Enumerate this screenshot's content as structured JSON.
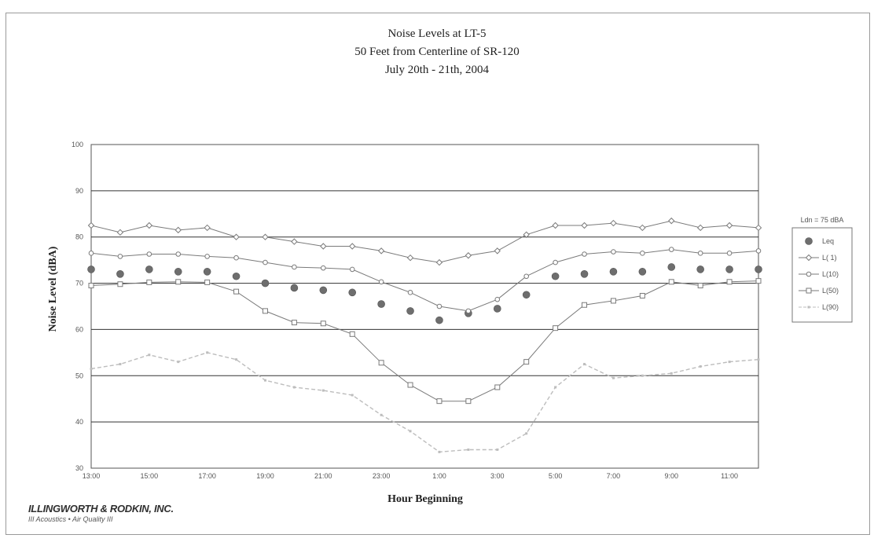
{
  "chart_data": {
    "type": "line",
    "title": [
      "Noise Levels at LT-5",
      "50 Feet from Centerline of SR-120",
      "July 20th - 21th, 2004"
    ],
    "xlabel": "Hour Beginning",
    "ylabel": "Noise Level (dBA)",
    "ylim": [
      30,
      100
    ],
    "yticks": [
      "30",
      "40",
      "50",
      "60",
      "70",
      "80",
      "90",
      "100"
    ],
    "x_tick_labels": [
      "13:00",
      "15:00",
      "17:00",
      "19:00",
      "21:00",
      "23:00",
      "1:00",
      "3:00",
      "5:00",
      "7:00",
      "9:00",
      "11:00"
    ],
    "grid": "horizontal",
    "legend_position": "right",
    "ldn_label": "Ldn = 75 dBA",
    "series": [
      {
        "name": "Leq",
        "style": "marker",
        "values": [
          73,
          72,
          73,
          72.5,
          72.5,
          71.5,
          70,
          69,
          68.5,
          68,
          65.5,
          64,
          62,
          63.5,
          64.5,
          67.5,
          71.5,
          72,
          72.5,
          72.5,
          73.5,
          73,
          73,
          73
        ]
      },
      {
        "name": "L( 1)",
        "style": "diamond",
        "values": [
          82.5,
          81,
          82.5,
          81.5,
          82,
          80,
          80,
          79,
          78,
          78,
          77,
          75.5,
          74.5,
          76,
          77,
          80.5,
          82.5,
          82.5,
          83,
          82,
          83.5,
          82,
          82.5,
          82
        ]
      },
      {
        "name": "L(10)",
        "style": "circle",
        "values": [
          76.5,
          75.8,
          76.3,
          76.3,
          75.8,
          75.5,
          74.5,
          73.5,
          73.3,
          73,
          70.3,
          68,
          65,
          64,
          66.5,
          71.5,
          74.5,
          76.3,
          76.8,
          76.5,
          77.3,
          76.5,
          76.5,
          77
        ]
      },
      {
        "name": "L(50)",
        "style": "square",
        "values": [
          69.5,
          69.8,
          70.2,
          70.3,
          70.2,
          68.2,
          64,
          61.5,
          61.3,
          59,
          52.8,
          48,
          44.5,
          44.5,
          47.5,
          53,
          60.3,
          65.3,
          66.2,
          67.3,
          70.3,
          69.5,
          70.3,
          70.5
        ]
      },
      {
        "name": "L(90)",
        "style": "dashed",
        "values": [
          51.5,
          52.5,
          54.5,
          53,
          55,
          53.5,
          49,
          47.5,
          46.8,
          45.8,
          41.5,
          38,
          33.5,
          34,
          34,
          37.5,
          47.5,
          52.5,
          49.5,
          50,
          50.5,
          52,
          53,
          53.5
        ]
      }
    ]
  },
  "logo": {
    "company": "ILLINGWORTH & RODKIN, INC.",
    "tagline": "III Acoustics • Air Quality III"
  },
  "colors": {
    "leq": "#6e6e6e",
    "line": "#7a7a7a",
    "l90": "#bdbdbd",
    "grid": "#333333"
  }
}
